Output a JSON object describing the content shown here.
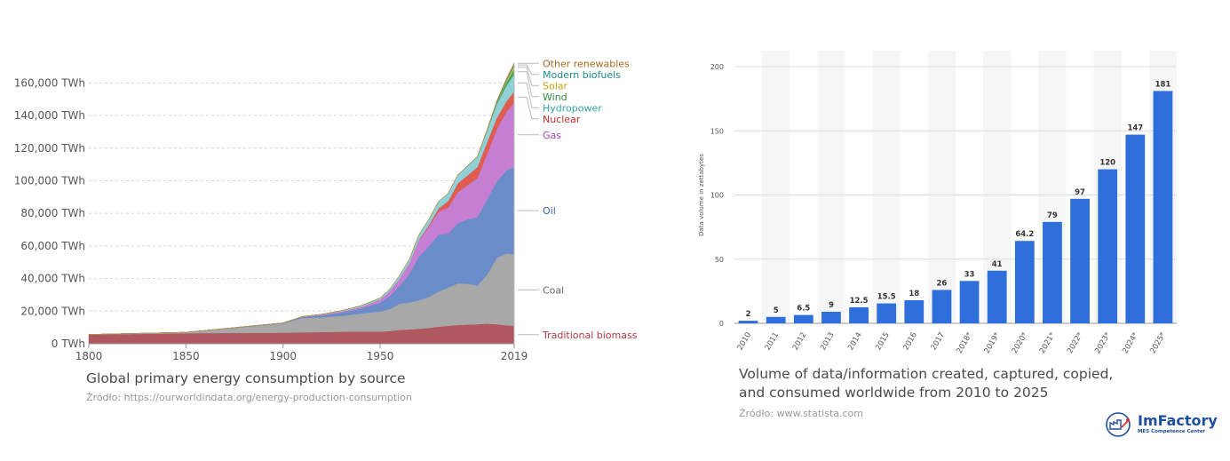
{
  "chart_data": [
    {
      "type": "area",
      "title": "Global primary energy consumption by source",
      "source": "Źródło: https://ourworldindata.org/energy-production-consumption",
      "x": [
        1800,
        1850,
        1900,
        1910,
        1920,
        1930,
        1940,
        1950,
        1955,
        1960,
        1965,
        1970,
        1975,
        1980,
        1985,
        1990,
        1995,
        2000,
        2005,
        2010,
        2015,
        2019
      ],
      "xticks": [
        "1800",
        "1850",
        "1900",
        "1950",
        "2019"
      ],
      "ylim": [
        0,
        170000
      ],
      "yticks": [
        "0 TWh",
        "20,000 TWh",
        "40,000 TWh",
        "60,000 TWh",
        "80,000 TWh",
        "100,000 TWh",
        "120,000 TWh",
        "140,000 TWh",
        "160,000 TWh"
      ],
      "ytick_values": [
        0,
        20000,
        40000,
        60000,
        80000,
        100000,
        120000,
        140000,
        160000
      ],
      "series": [
        {
          "name": "Traditional biomass",
          "color": "#b05860",
          "text_color": "#b03a48",
          "values": [
            5600,
            6500,
            6800,
            7000,
            7200,
            7400,
            7500,
            7500,
            7800,
            8500,
            8800,
            9200,
            9700,
            10500,
            11000,
            11500,
            11800,
            12000,
            12300,
            12000,
            11300,
            11100
          ]
        },
        {
          "name": "Coal",
          "color": "#a8a8a8",
          "text_color": "#666666",
          "values": [
            97,
            550,
            5700,
            8800,
            9000,
            9700,
            11000,
            12300,
            13500,
            16000,
            16500,
            17500,
            19000,
            21500,
            23500,
            25500,
            25000,
            23600,
            30000,
            40500,
            44000,
            43800
          ]
        },
        {
          "name": "Oil",
          "color": "#6a8cc8",
          "text_color": "#3d5da8",
          "values": [
            0,
            0,
            181,
            600,
            1200,
            2000,
            3000,
            5400,
            8000,
            11000,
            17500,
            27000,
            31000,
            35000,
            33000,
            37000,
            39500,
            42000,
            46000,
            47000,
            51000,
            53600
          ]
        },
        {
          "name": "Gas",
          "color": "#c47fd2",
          "text_color": "#a348b5",
          "values": [
            0,
            0,
            64,
            200,
            400,
            700,
            1000,
            2000,
            3000,
            4500,
            6500,
            10000,
            12000,
            14000,
            16000,
            19000,
            21000,
            24000,
            28000,
            32000,
            36000,
            39300
          ]
        },
        {
          "name": "Nuclear",
          "color": "#e05c50",
          "text_color": "#c43028",
          "values": [
            0,
            0,
            0,
            0,
            0,
            0,
            0,
            0,
            0,
            0,
            100,
            300,
            1000,
            2000,
            4000,
            5500,
            6000,
            6700,
            7200,
            7000,
            6500,
            6900
          ]
        },
        {
          "name": "Hydropower",
          "color": "#8fd1d6",
          "text_color": "#3aa0a8",
          "values": [
            0,
            0,
            60,
            150,
            300,
            500,
            800,
            900,
            1300,
            1900,
            2300,
            3000,
            3500,
            4200,
            4700,
            5100,
            5700,
            6200,
            7000,
            8400,
            9400,
            10500
          ]
        },
        {
          "name": "Wind",
          "color": "#4ea562",
          "text_color": "#2e8a45",
          "values": [
            0,
            0,
            0,
            0,
            0,
            0,
            0,
            0,
            0,
            0,
            0,
            0,
            0,
            0,
            0,
            10,
            30,
            80,
            260,
            900,
            2300,
            3500
          ]
        },
        {
          "name": "Solar",
          "color": "#e0c030",
          "text_color": "#c8a010",
          "values": [
            0,
            0,
            0,
            0,
            0,
            0,
            0,
            0,
            0,
            0,
            0,
            0,
            0,
            0,
            0,
            0,
            0,
            5,
            10,
            90,
            700,
            1800
          ]
        },
        {
          "name": "Modern biofuels",
          "color": "#2a9d9a",
          "text_color": "#1f8a8a",
          "values": [
            0,
            0,
            0,
            0,
            0,
            0,
            0,
            0,
            0,
            0,
            0,
            0,
            0,
            0,
            10,
            30,
            40,
            50,
            200,
            600,
            900,
            1100
          ]
        },
        {
          "name": "Other renewables",
          "color": "#c48a40",
          "text_color": "#a86a20",
          "values": [
            0,
            0,
            0,
            0,
            0,
            0,
            0,
            0,
            0,
            0,
            10,
            20,
            30,
            50,
            100,
            150,
            200,
            300,
            400,
            500,
            700,
            800
          ]
        }
      ]
    },
    {
      "type": "bar",
      "title_line1": "Volume of data/information created, captured, copied,",
      "title_line2": "and consumed worldwide from 2010 to 2025",
      "source": "Źródło: www.statista.com",
      "ylabel": "Data volume in zettabytes",
      "ylim": [
        0,
        200
      ],
      "yticks": [
        "0",
        "50",
        "100",
        "150",
        "200"
      ],
      "ytick_values": [
        0,
        50,
        100,
        150,
        200
      ],
      "categories": [
        "2010",
        "2011",
        "2012",
        "2013",
        "2014",
        "2015",
        "2016",
        "2017",
        "2018*",
        "2019*",
        "2020*",
        "2021*",
        "2022*",
        "2023*",
        "2024*",
        "2025*"
      ],
      "values": [
        2,
        5,
        6.5,
        9,
        12.5,
        15.5,
        18,
        26,
        33,
        41,
        64.2,
        79,
        97,
        120,
        147,
        181
      ],
      "labels": [
        "2",
        "5",
        "6.5",
        "9",
        "12.5",
        "15.5",
        "18",
        "26",
        "33",
        "41",
        "64.2",
        "79",
        "97",
        "120",
        "147",
        "181"
      ],
      "bar_color": "#2e6fdb"
    }
  ],
  "logo": {
    "brand": "ImFactory",
    "tagline": "MES Competence Center",
    "color": "#1e4f9c"
  }
}
